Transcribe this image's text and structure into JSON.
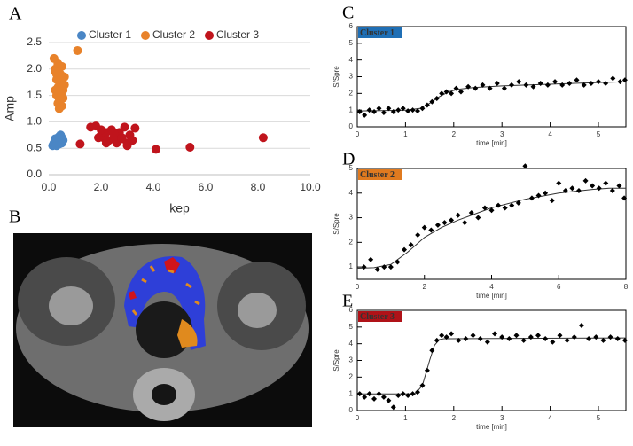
{
  "chart_data": [
    {
      "panel": "A",
      "type": "scatter",
      "x_label": "kep",
      "y_label": "Amp",
      "grid": true,
      "legend": "top",
      "marker": "circle",
      "frame": false,
      "xlim": [
        0,
        10
      ],
      "ylim": [
        0,
        2.5
      ],
      "xticks": [
        {
          "value": 0,
          "label": "0.0"
        },
        {
          "value": 2,
          "label": "2.0"
        },
        {
          "value": 4,
          "label": "4.0"
        },
        {
          "value": 6,
          "label": "6.0"
        },
        {
          "value": 8,
          "label": "8.0"
        },
        {
          "value": 10,
          "label": "10.0"
        }
      ],
      "yticks": [
        {
          "value": 0,
          "label": "0.0"
        },
        0.5,
        {
          "value": 1,
          "label": "1.0"
        },
        1.5,
        {
          "value": 2,
          "label": "2.0"
        },
        2.5
      ],
      "series": [
        {
          "name": "Cluster 1",
          "color": "#4a86c5",
          "x": [
            0.15,
            0.2,
            0.25,
            0.3,
            0.35,
            0.4,
            0.45,
            0.5,
            0.55,
            0.3,
            0.4,
            0.5,
            0.25,
            0.45,
            0.35
          ],
          "values": [
            0.55,
            0.6,
            0.62,
            0.65,
            0.7,
            0.72,
            0.68,
            0.6,
            0.65,
            0.55,
            0.58,
            0.7,
            0.68,
            0.75,
            0.6
          ]
        },
        {
          "name": "Cluster 2",
          "color": "#e8822a",
          "x": [
            0.2,
            0.25,
            0.3,
            0.35,
            0.4,
            0.45,
            0.5,
            0.55,
            0.6,
            0.3,
            0.4,
            0.5,
            0.35,
            0.45,
            0.25,
            0.55,
            0.4,
            0.6,
            0.3,
            0.5,
            0.35,
            0.45,
            1.1,
            0.25,
            0.5
          ],
          "values": [
            2.2,
            2.0,
            1.9,
            2.1,
            1.8,
            1.7,
            1.75,
            1.6,
            1.85,
            1.5,
            1.4,
            1.3,
            1.65,
            1.55,
            1.95,
            1.45,
            1.25,
            1.7,
            1.8,
            2.05,
            1.35,
            1.9,
            2.35,
            1.6,
            1.5
          ]
        },
        {
          "name": "Cluster 3",
          "color": "#c0141c",
          "x": [
            1.2,
            1.6,
            1.8,
            2.0,
            2.1,
            2.2,
            2.3,
            2.4,
            2.5,
            2.6,
            2.7,
            2.8,
            2.9,
            3.0,
            3.1,
            3.2,
            3.3,
            2.2,
            2.5,
            2.8,
            3.0,
            2.0,
            4.1,
            5.4,
            8.2,
            1.9
          ],
          "values": [
            0.58,
            0.9,
            0.92,
            0.75,
            0.7,
            0.8,
            0.65,
            0.85,
            0.72,
            0.6,
            0.8,
            0.68,
            0.9,
            0.6,
            0.75,
            0.65,
            0.88,
            0.6,
            0.78,
            0.7,
            0.55,
            0.85,
            0.48,
            0.52,
            0.7,
            0.7
          ]
        }
      ]
    },
    {
      "panel": "B",
      "type": "image"
    },
    {
      "panel": "C",
      "type": "scatter",
      "x_label": "time [min]",
      "y_label": "S/Spre",
      "grid": false,
      "legend": "upper left",
      "marker": "diamond",
      "frame": true,
      "xlim": [
        0,
        5.57
      ],
      "ylim": [
        0,
        6
      ],
      "xticks": [
        0,
        1,
        2,
        3,
        4,
        5
      ],
      "yticks": [
        0,
        1,
        2,
        3,
        4,
        5,
        6
      ],
      "series": [
        {
          "name": "Cluster 1",
          "color": "#1f6fb5",
          "x": [
            0.05,
            0.15,
            0.25,
            0.35,
            0.45,
            0.55,
            0.65,
            0.75,
            0.85,
            0.95,
            1.05,
            1.15,
            1.25,
            1.35,
            1.45,
            1.55,
            1.65,
            1.75,
            1.85,
            1.95,
            2.05,
            2.15,
            2.3,
            2.45,
            2.6,
            2.75,
            2.9,
            3.05,
            3.2,
            3.35,
            3.5,
            3.65,
            3.8,
            3.95,
            4.1,
            4.25,
            4.4,
            4.55,
            4.7,
            4.85,
            5.0,
            5.15,
            5.3,
            5.45,
            5.55
          ],
          "values": [
            0.9,
            0.7,
            1.0,
            0.9,
            1.1,
            0.85,
            1.1,
            0.9,
            1.0,
            1.1,
            0.95,
            1.0,
            0.95,
            1.1,
            1.3,
            1.5,
            1.7,
            2.0,
            2.1,
            2.0,
            2.3,
            2.1,
            2.4,
            2.3,
            2.5,
            2.3,
            2.6,
            2.3,
            2.5,
            2.7,
            2.5,
            2.4,
            2.6,
            2.5,
            2.7,
            2.5,
            2.6,
            2.8,
            2.5,
            2.6,
            2.7,
            2.6,
            2.9,
            2.7,
            2.8
          ]
        }
      ],
      "fit": {
        "x": [
          0,
          0.5,
          1,
          1.3,
          1.5,
          1.7,
          1.9,
          2.1,
          2.4,
          3,
          3.5,
          4,
          4.5,
          5,
          5.57
        ],
        "values": [
          0.95,
          0.97,
          1.0,
          1.1,
          1.4,
          1.8,
          2.1,
          2.25,
          2.35,
          2.45,
          2.5,
          2.55,
          2.6,
          2.65,
          2.7
        ]
      }
    },
    {
      "panel": "D",
      "type": "scatter",
      "x_label": "time [min]",
      "y_label": "S/Spre",
      "grid": false,
      "legend": "upper left",
      "marker": "diamond",
      "frame": true,
      "xlim": [
        0,
        8
      ],
      "ylim": [
        0.5,
        5
      ],
      "xticks": [
        0,
        2,
        4,
        6,
        8
      ],
      "yticks": [
        1,
        2,
        3,
        4,
        5
      ],
      "series": [
        {
          "name": "Cluster 2",
          "color": "#e07a1f",
          "x": [
            0.2,
            0.4,
            0.6,
            0.8,
            1.0,
            1.2,
            1.4,
            1.6,
            1.8,
            2.0,
            2.2,
            2.4,
            2.6,
            2.8,
            3.0,
            3.2,
            3.4,
            3.6,
            3.8,
            4.0,
            4.2,
            4.4,
            4.6,
            4.8,
            5.0,
            5.2,
            5.4,
            5.6,
            5.8,
            6.0,
            6.2,
            6.4,
            6.6,
            6.8,
            7.0,
            7.2,
            7.4,
            7.6,
            7.8,
            7.95
          ],
          "values": [
            1.0,
            1.3,
            0.9,
            1.0,
            1.0,
            1.2,
            1.7,
            1.9,
            2.3,
            2.6,
            2.5,
            2.7,
            2.8,
            2.9,
            3.1,
            2.8,
            3.2,
            3.0,
            3.4,
            3.3,
            3.5,
            3.4,
            3.5,
            3.6,
            5.1,
            3.8,
            3.9,
            4.0,
            3.7,
            4.4,
            4.1,
            4.2,
            4.1,
            4.5,
            4.3,
            4.2,
            4.4,
            4.1,
            4.3,
            3.8
          ]
        }
      ],
      "fit": {
        "x": [
          0,
          0.5,
          1,
          1.5,
          2,
          2.5,
          3,
          3.5,
          4,
          5,
          6,
          7,
          7.5,
          8
        ],
        "values": [
          0.95,
          0.97,
          1.1,
          1.6,
          2.2,
          2.6,
          2.9,
          3.15,
          3.4,
          3.75,
          4.0,
          4.15,
          4.2,
          4.2
        ]
      }
    },
    {
      "panel": "E",
      "type": "scatter",
      "x_label": "time [min]",
      "y_label": "S/Spre",
      "grid": false,
      "legend": "upper left",
      "marker": "diamond",
      "frame": true,
      "xlim": [
        0,
        5.57
      ],
      "ylim": [
        0,
        6
      ],
      "xticks": [
        0,
        1,
        2,
        3,
        4,
        5
      ],
      "yticks": [
        0,
        1,
        2,
        3,
        4,
        5,
        6
      ],
      "series": [
        {
          "name": "Cluster 3",
          "color": "#b01218",
          "x": [
            0.05,
            0.15,
            0.25,
            0.35,
            0.45,
            0.55,
            0.65,
            0.75,
            0.85,
            0.95,
            1.05,
            1.15,
            1.25,
            1.35,
            1.45,
            1.55,
            1.65,
            1.75,
            1.85,
            1.95,
            2.1,
            2.25,
            2.4,
            2.55,
            2.7,
            2.85,
            3.0,
            3.15,
            3.3,
            3.45,
            3.6,
            3.75,
            3.9,
            4.05,
            4.2,
            4.35,
            4.5,
            4.65,
            4.8,
            4.95,
            5.1,
            5.25,
            5.4,
            5.55
          ],
          "values": [
            1.0,
            0.8,
            1.0,
            0.7,
            1.0,
            0.8,
            0.6,
            0.2,
            0.9,
            1.0,
            0.9,
            1.0,
            1.1,
            1.5,
            2.4,
            3.6,
            4.2,
            4.5,
            4.4,
            4.6,
            4.2,
            4.3,
            4.5,
            4.3,
            4.1,
            4.6,
            4.4,
            4.3,
            4.5,
            4.2,
            4.4,
            4.5,
            4.3,
            4.1,
            4.5,
            4.2,
            4.4,
            5.1,
            4.3,
            4.4,
            4.2,
            4.4,
            4.3,
            4.2
          ]
        }
      ],
      "fit": {
        "x": [
          0,
          1.2,
          1.35,
          1.5,
          1.6,
          1.7,
          1.8,
          5.57
        ],
        "values": [
          1.0,
          1.0,
          1.5,
          3.0,
          3.9,
          4.25,
          4.3,
          4.35
        ]
      }
    }
  ]
}
